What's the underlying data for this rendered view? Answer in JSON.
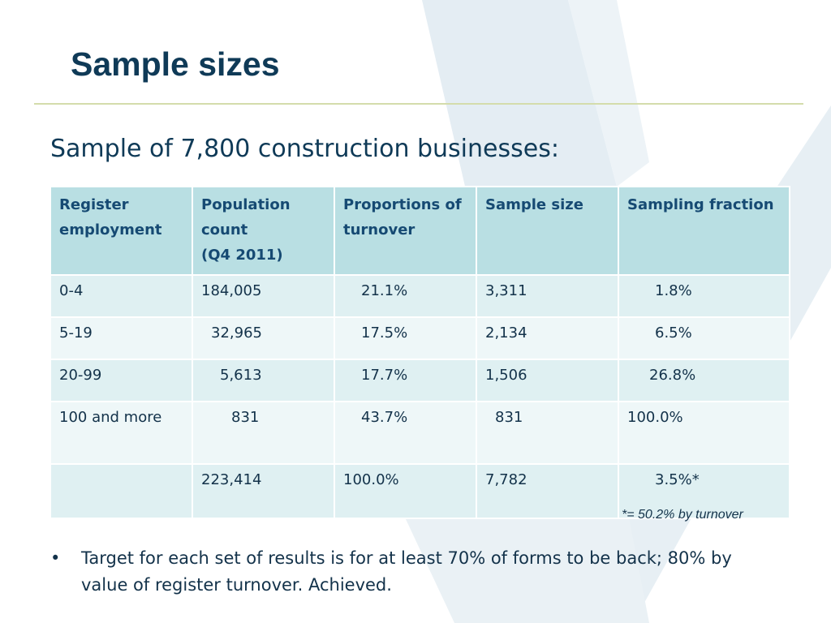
{
  "slide": {
    "title": "Sample sizes",
    "subtitle": "Sample of 7,800 construction businesses:"
  },
  "table": {
    "headers": [
      {
        "lines": [
          "Register",
          "employment"
        ]
      },
      {
        "lines": [
          "Population",
          "count",
          "(Q4 2011)"
        ]
      },
      {
        "lines": [
          "Proportions of",
          "turnover"
        ]
      },
      {
        "lines": [
          "Sample size"
        ]
      },
      {
        "lines": [
          "Sampling fraction"
        ]
      }
    ],
    "rows": [
      {
        "band": "0-4",
        "population": "184,005",
        "turnover": "21.1%",
        "sample": "3,311",
        "fraction": "1.8%"
      },
      {
        "band": "5-19",
        "population": "32,965",
        "turnover": "17.5%",
        "sample": "2,134",
        "fraction": "6.5%"
      },
      {
        "band": "20-99",
        "population": "5,613",
        "turnover": "17.7%",
        "sample": "1,506",
        "fraction": "26.8%"
      },
      {
        "band": "100 and more",
        "population": "831",
        "turnover": "43.7%",
        "sample": "831",
        "fraction": "100.0%"
      },
      {
        "band": "",
        "population": "223,414",
        "turnover": "100.0%",
        "sample": "7,782",
        "fraction": "3.5%*"
      }
    ]
  },
  "footnote": "*= 50.2% by turnover",
  "bullets": [
    {
      "symbol": "•",
      "text": "Target for each set of results is for at least 70% of forms to be back; 80% by value of register turnover.  Achieved."
    }
  ],
  "colors": {
    "title": "#0f3a57",
    "header_bg": "#b9dfe3",
    "row_bg_a": "#dff0f2",
    "row_bg_b": "#eef7f8",
    "rule": "#d4dcab"
  }
}
